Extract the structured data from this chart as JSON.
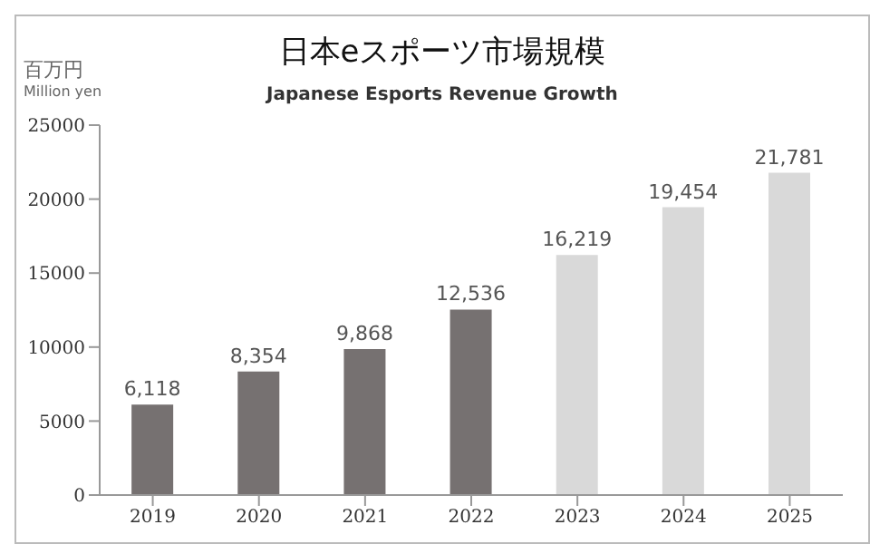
{
  "chart_data": {
    "type": "bar",
    "title": "日本eスポーツ市場規模",
    "subtitle": "Japanese Esports Revenue Growth",
    "ylabel": "百万円\nMillion yen",
    "categories": [
      "2019",
      "2020",
      "2021",
      "2022",
      "2023",
      "2024",
      "2025"
    ],
    "values": [
      6118,
      8354,
      9868,
      12536,
      16219,
      19454,
      21781
    ],
    "colors": [
      "#767171",
      "#767171",
      "#767171",
      "#767171",
      "#d9d9d9",
      "#d9d9d9",
      "#d9d9d9"
    ],
    "value_labels": [
      "6,118",
      "8,354",
      "9,868",
      "12,536",
      "16,219",
      "19,454",
      "21,781"
    ],
    "ylim": [
      0,
      25000
    ],
    "yticks": [
      0,
      5000,
      10000,
      15000,
      20000,
      25000
    ],
    "grid": false,
    "legend": false
  }
}
